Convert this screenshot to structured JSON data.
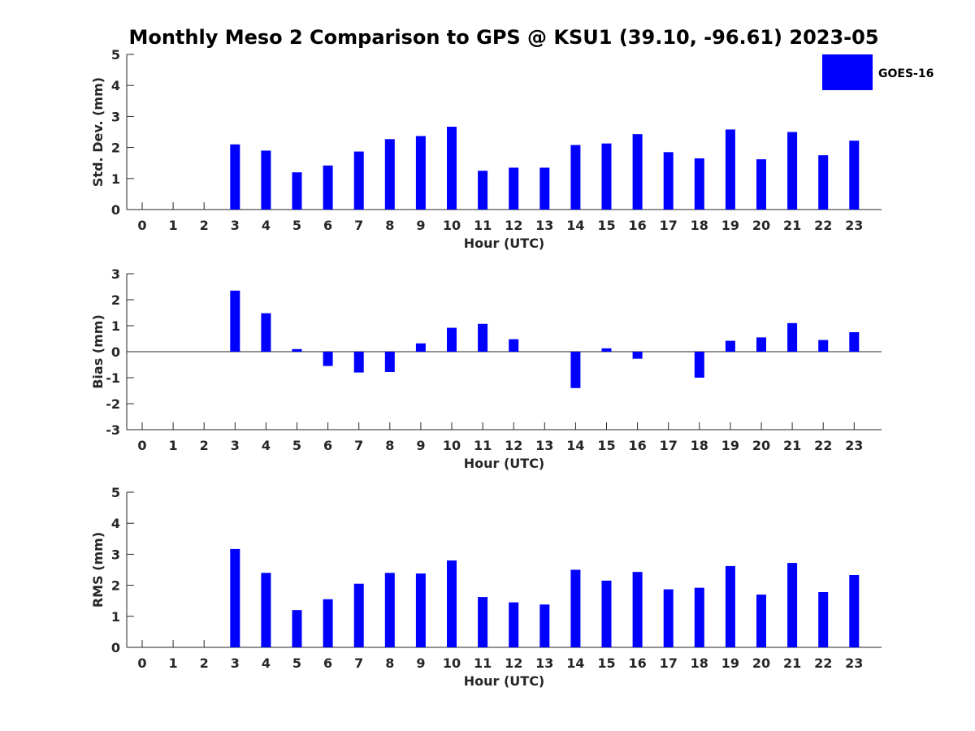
{
  "figure_title": "Monthly Meso 2 Comparison to GPS @ KSU1 (39.10, -96.61) 2023-05",
  "legend": {
    "label": "GOES-16",
    "color": "#0000ff"
  },
  "chart_data": [
    {
      "type": "bar",
      "xlabel": "Hour (UTC)",
      "ylabel": "Std. Dev. (mm)",
      "ylim": [
        0,
        5
      ],
      "yticks": [
        0,
        1,
        2,
        3,
        4,
        5
      ],
      "categories": [
        "0",
        "1",
        "2",
        "3",
        "4",
        "5",
        "6",
        "7",
        "8",
        "9",
        "10",
        "11",
        "12",
        "13",
        "14",
        "15",
        "16",
        "17",
        "18",
        "19",
        "20",
        "21",
        "22",
        "23"
      ],
      "series": [
        {
          "name": "GOES-16",
          "color": "#0000ff",
          "values": [
            null,
            null,
            null,
            2.1,
            1.9,
            1.2,
            1.42,
            1.87,
            2.27,
            2.37,
            2.67,
            1.25,
            1.35,
            1.35,
            2.08,
            2.13,
            2.43,
            1.85,
            1.65,
            2.58,
            1.62,
            2.5,
            1.75,
            2.22
          ]
        }
      ],
      "legend_position": "top-right"
    },
    {
      "type": "bar",
      "xlabel": "Hour (UTC)",
      "ylabel": "Bias (mm)",
      "ylim": [
        -3,
        3
      ],
      "yticks": [
        -3,
        -2,
        -1,
        0,
        1,
        2,
        3
      ],
      "categories": [
        "0",
        "1",
        "2",
        "3",
        "4",
        "5",
        "6",
        "7",
        "8",
        "9",
        "10",
        "11",
        "12",
        "13",
        "14",
        "15",
        "16",
        "17",
        "18",
        "19",
        "20",
        "21",
        "22",
        "23"
      ],
      "series": [
        {
          "name": "GOES-16",
          "color": "#0000ff",
          "values": [
            null,
            null,
            null,
            2.35,
            1.48,
            0.1,
            -0.55,
            -0.8,
            -0.78,
            0.32,
            0.92,
            1.07,
            0.48,
            0,
            -1.4,
            0.13,
            -0.27,
            0,
            -1.0,
            0.42,
            0.55,
            1.1,
            0.45,
            0.75
          ]
        }
      ]
    },
    {
      "type": "bar",
      "xlabel": "Hour (UTC)",
      "ylabel": "RMS (mm)",
      "ylim": [
        0,
        5
      ],
      "yticks": [
        0,
        1,
        2,
        3,
        4,
        5
      ],
      "categories": [
        "0",
        "1",
        "2",
        "3",
        "4",
        "5",
        "6",
        "7",
        "8",
        "9",
        "10",
        "11",
        "12",
        "13",
        "14",
        "15",
        "16",
        "17",
        "18",
        "19",
        "20",
        "21",
        "22",
        "23"
      ],
      "series": [
        {
          "name": "GOES-16",
          "color": "#0000ff",
          "values": [
            null,
            null,
            null,
            3.17,
            2.4,
            1.2,
            1.55,
            2.05,
            2.4,
            2.38,
            2.8,
            1.62,
            1.45,
            1.38,
            2.5,
            2.15,
            2.43,
            1.87,
            1.92,
            2.62,
            1.7,
            2.72,
            1.78,
            2.33
          ]
        }
      ]
    }
  ]
}
